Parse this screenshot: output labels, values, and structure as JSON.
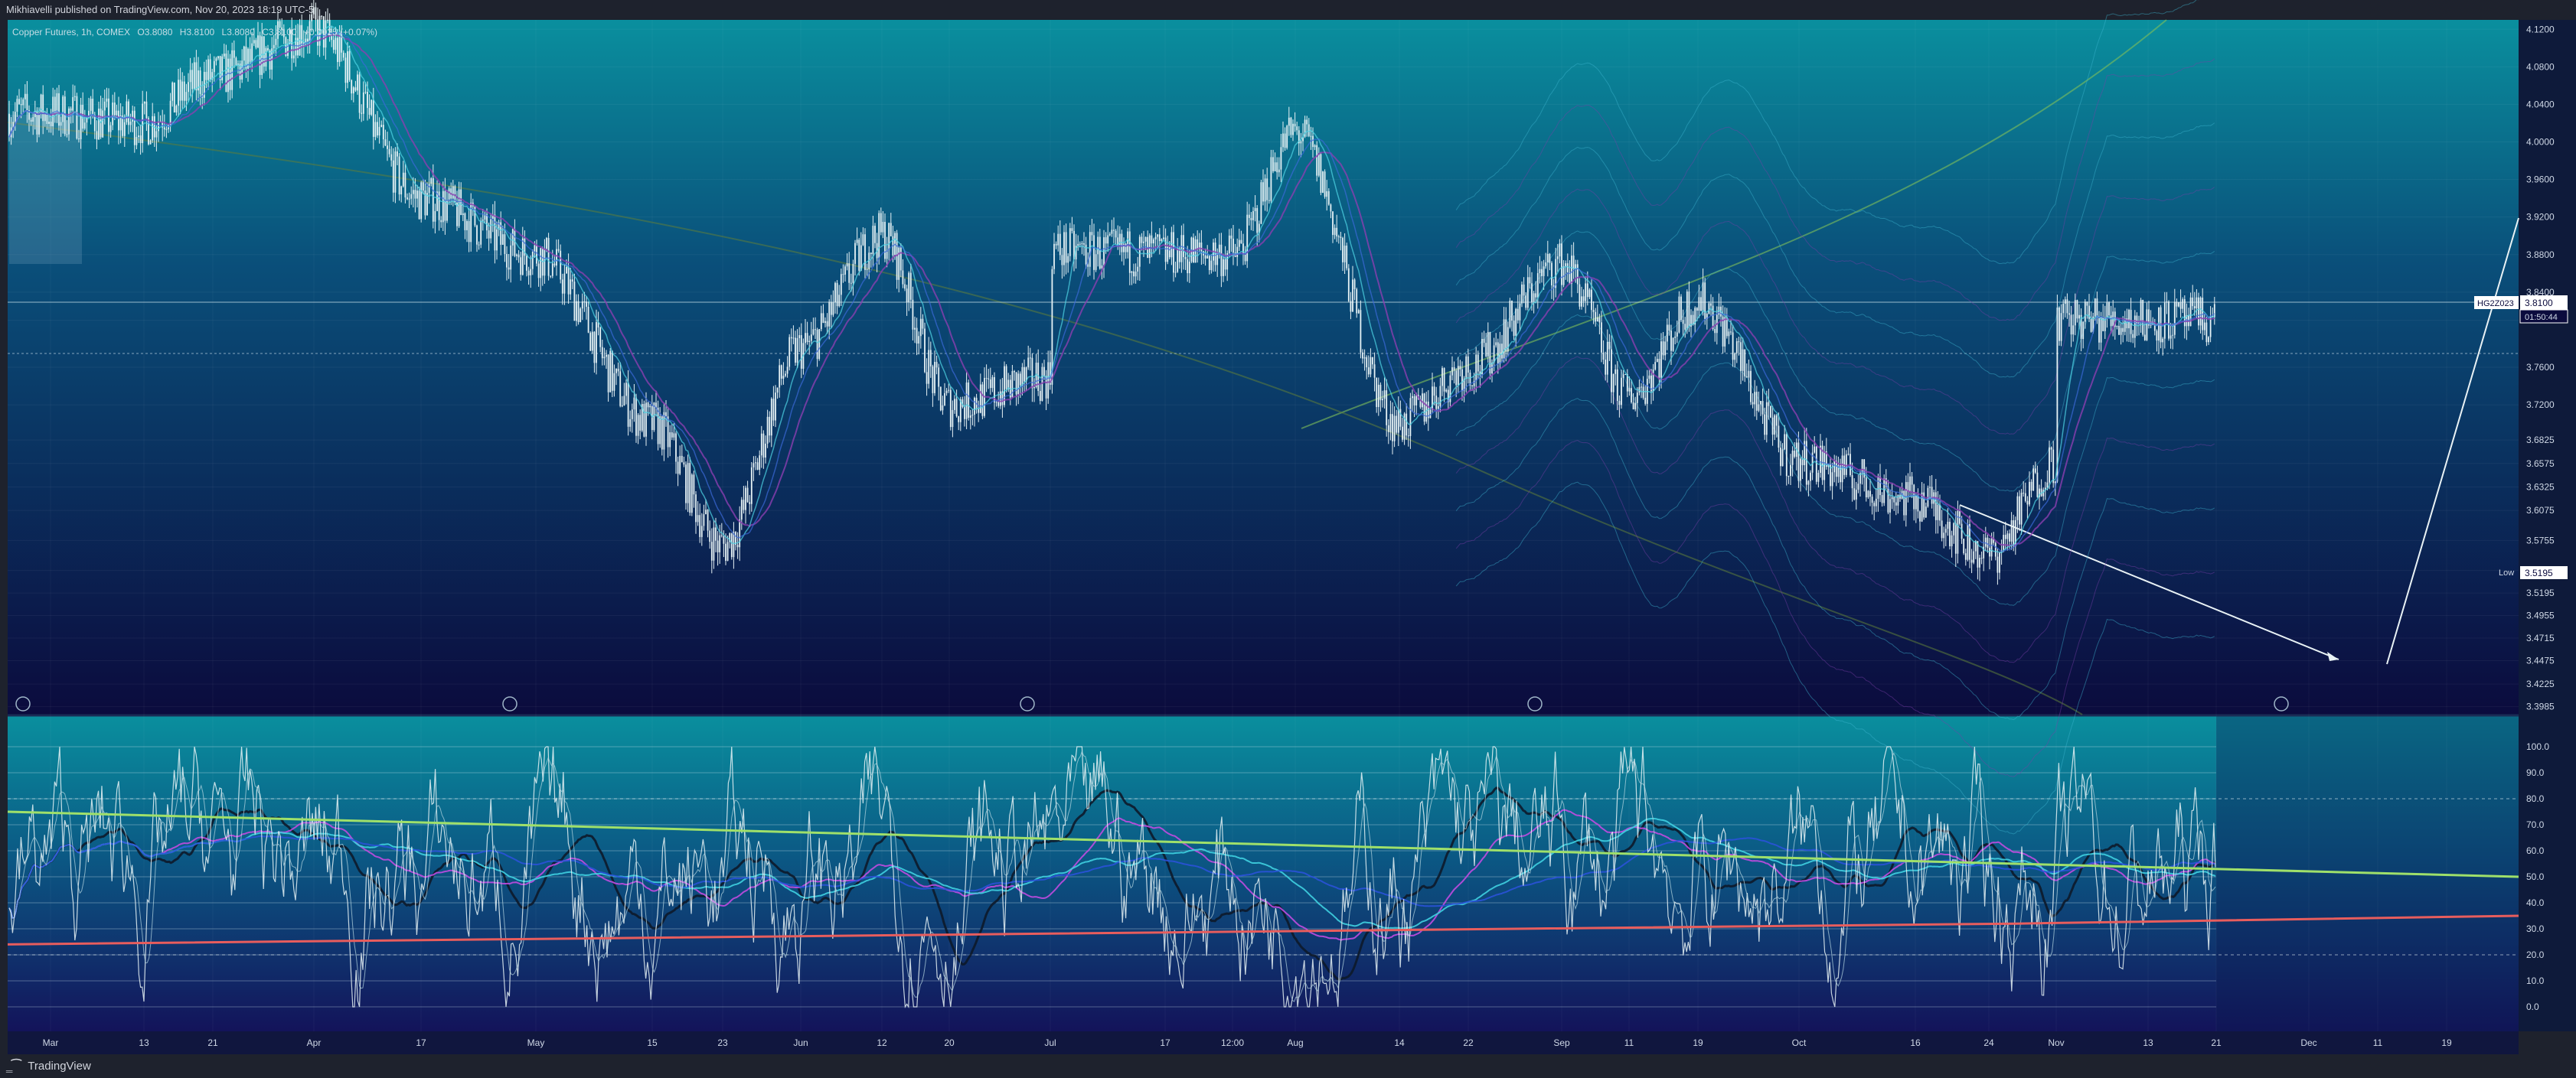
{
  "header": {
    "publisher": "Mikhiavelli published on TradingView.com, Nov 20, 2023 18:19 UTC-5"
  },
  "footer": {
    "brand": "TradingView"
  },
  "legend": {
    "symbol": "Copper Futures, 1h, COMEX",
    "open": "O3.8080",
    "high": "H3.8100",
    "low": "L3.8080",
    "close": "C3.8100",
    "change": "+0.0025 (+0.07%)"
  },
  "colors": {
    "price_bg_top": "#0a8f9e",
    "price_bg_bottom": "#0b0b3d",
    "osc_bg_top": "#0a8f9e",
    "osc_bg_bottom": "#13135a",
    "candle": "#e6f2f5",
    "green_line": "#9fe06a",
    "red_line": "#e85d5d",
    "magenta": "#c04be0",
    "cyan": "#3fd0e0",
    "blue": "#2a52d8",
    "dark": "#0d1a2a"
  },
  "chart_data": [
    {
      "type": "candlestick",
      "title": "Copper Futures, 1h, COMEX",
      "x_ticks": [
        "Mar",
        "13",
        "21",
        "Apr",
        "17",
        "May",
        "15",
        "23",
        "Jun",
        "12",
        "20",
        "Jul",
        "17",
        "12:00",
        "Aug",
        "14",
        "22",
        "Sep",
        "11",
        "19",
        "Oct",
        "16",
        "24",
        "Nov",
        "13",
        "21",
        "Dec",
        "11",
        "19"
      ],
      "y_ticks": [
        "4.1200",
        "4.0800",
        "4.0400",
        "4.0000",
        "3.9600",
        "3.9200",
        "3.8800",
        "3.8400",
        "3.8100",
        "3.7600",
        "3.7200",
        "3.6825",
        "3.6575",
        "3.6325",
        "3.6075",
        "3.5755",
        "3.5435",
        "3.5195",
        "3.4955",
        "3.4715",
        "3.4475",
        "3.4225",
        "3.3985"
      ],
      "ylim": [
        3.39,
        4.13
      ],
      "price_trace": [
        [
          "Mar",
          4.03
        ],
        [
          "13",
          4.02
        ],
        [
          "21",
          4.07
        ],
        [
          "Apr",
          4.12
        ],
        [
          "17",
          3.94
        ],
        [
          "May",
          3.88
        ],
        [
          "15",
          3.7
        ],
        [
          "23",
          3.57
        ],
        [
          "Jun",
          3.78
        ],
        [
          "12",
          3.9
        ],
        [
          "20",
          3.72
        ],
        [
          "Jul",
          3.75
        ],
        [
          "17",
          3.92
        ],
        [
          "12:00",
          3.88
        ],
        [
          "Aug",
          4.01
        ],
        [
          "14",
          3.7
        ],
        [
          "22",
          3.76
        ],
        [
          "Sep",
          3.87
        ],
        [
          "11",
          3.73
        ],
        [
          "19",
          3.83
        ],
        [
          "Oct",
          3.66
        ],
        [
          "16",
          3.62
        ],
        [
          "24",
          3.56
        ],
        [
          "Nov",
          3.66
        ],
        [
          "13",
          3.67
        ],
        [
          "21",
          3.81
        ]
      ],
      "last_price": {
        "symbol": "HG2Z023",
        "price": "3.8100",
        "countdown": "01:50:44"
      },
      "low_marker": {
        "label": "Low",
        "price": "3.5195"
      }
    },
    {
      "type": "line",
      "y_ticks": [
        "100.0",
        "90.0",
        "80.0",
        "70.0",
        "60.0",
        "50.0",
        "40.0",
        "30.0",
        "20.0",
        "10.0",
        "0.0"
      ],
      "ylim": [
        0,
        100
      ],
      "series": [
        {
          "values": [
            75,
            70,
            65,
            60,
            55,
            50
          ]
        },
        {
          "values": [
            24,
            26,
            28,
            30,
            32,
            35
          ]
        }
      ]
    }
  ]
}
